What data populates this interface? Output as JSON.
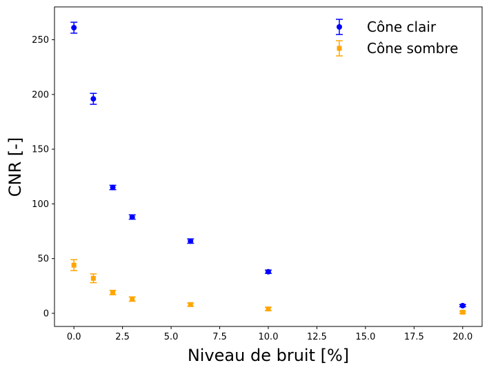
{
  "chart_data": {
    "type": "scatter",
    "xlabel": "Niveau de bruit [%]",
    "ylabel": "CNR [-]",
    "xlim": [
      -1.0,
      21.0
    ],
    "ylim": [
      -12,
      280
    ],
    "x_ticks": [
      0.0,
      2.5,
      5.0,
      7.5,
      10.0,
      12.5,
      15.0,
      17.5,
      20.0
    ],
    "x_tick_labels": [
      "0.0",
      "2.5",
      "5.0",
      "7.5",
      "10.0",
      "12.5",
      "15.0",
      "17.5",
      "20.0"
    ],
    "y_ticks": [
      0,
      50,
      100,
      150,
      200,
      250
    ],
    "y_tick_labels": [
      "0",
      "50",
      "100",
      "150",
      "200",
      "250"
    ],
    "grid": false,
    "legend_position": "top-right",
    "series": [
      {
        "name": "Cône clair",
        "color": "#0000ff",
        "marker": "circle",
        "x": [
          0,
          1,
          2,
          3,
          6,
          10,
          20
        ],
        "y": [
          261,
          196,
          115,
          88,
          66,
          38,
          7
        ],
        "err": [
          5,
          5,
          2,
          2,
          2,
          1.5,
          1
        ]
      },
      {
        "name": "Cône sombre",
        "color": "#ffa500",
        "marker": "square",
        "x": [
          0,
          1,
          2,
          3,
          6,
          10,
          20
        ],
        "y": [
          44,
          32,
          19,
          13,
          8,
          4,
          1
        ],
        "err": [
          5,
          4,
          2,
          2,
          1.5,
          1.5,
          1
        ]
      }
    ]
  }
}
